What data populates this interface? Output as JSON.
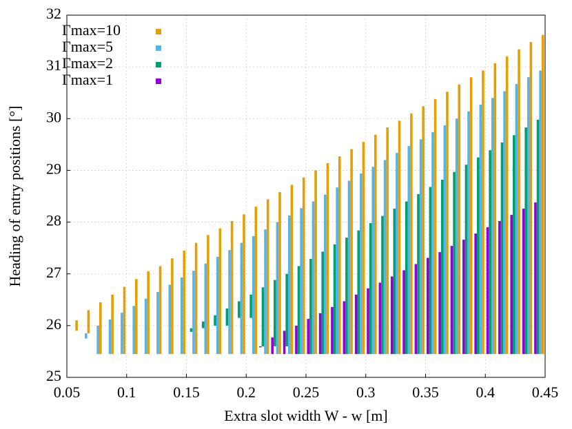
{
  "chart_data": {
    "type": "range-bar",
    "xlabel": "Extra slot width W - w [m]",
    "ylabel": "Heading of entry positions [°]",
    "xlim": [
      0.05,
      0.45
    ],
    "xticks": [
      0.05,
      0.1,
      0.15,
      0.2,
      0.25,
      0.3,
      0.35,
      0.4,
      0.45
    ],
    "ylim": [
      25,
      32
    ],
    "yticks": [
      25,
      26,
      27,
      28,
      29,
      30,
      31,
      32
    ],
    "grid": true,
    "legend": "top-left",
    "x": [
      0.055,
      0.065,
      0.075,
      0.085,
      0.095,
      0.105,
      0.115,
      0.125,
      0.135,
      0.145,
      0.155,
      0.165,
      0.175,
      0.185,
      0.195,
      0.205,
      0.215,
      0.225,
      0.235,
      0.245,
      0.255,
      0.265,
      0.275,
      0.285,
      0.295,
      0.305,
      0.315,
      0.325,
      0.335,
      0.345,
      0.355,
      0.365,
      0.375,
      0.385,
      0.395,
      0.405,
      0.415,
      0.425,
      0.435,
      0.445
    ],
    "series": [
      {
        "name": "Γmax=10",
        "color": "#e69f00",
        "low": [
          25.9,
          25.85,
          25.45,
          25.45,
          25.45,
          25.45,
          25.45,
          25.45,
          25.45,
          25.45,
          25.45,
          25.45,
          25.45,
          25.45,
          25.45,
          25.45,
          25.45,
          25.45,
          25.45,
          25.45,
          25.45,
          25.45,
          25.45,
          25.45,
          25.45,
          25.45,
          25.45,
          25.45,
          25.45,
          25.45,
          25.45,
          25.45,
          25.45,
          25.45,
          25.45,
          25.45,
          25.45,
          25.45,
          25.45,
          25.45
        ],
        "high": [
          26.1,
          26.3,
          26.45,
          26.6,
          26.75,
          26.9,
          27.05,
          27.15,
          27.3,
          27.45,
          27.6,
          27.75,
          27.88,
          28.02,
          28.15,
          28.3,
          28.44,
          28.58,
          28.72,
          28.86,
          29.0,
          29.14,
          29.27,
          29.41,
          29.55,
          29.69,
          29.83,
          29.96,
          30.1,
          30.24,
          30.38,
          30.52,
          30.66,
          30.8,
          30.93,
          31.07,
          31.2,
          31.34,
          31.48,
          31.62
        ]
      },
      {
        "name": "Γmax=5",
        "color": "#56b4e9",
        "low": [
          null,
          25.75,
          25.45,
          25.45,
          25.45,
          25.45,
          25.45,
          25.45,
          25.45,
          25.45,
          25.45,
          25.45,
          25.45,
          25.45,
          25.45,
          25.45,
          25.45,
          25.45,
          25.45,
          25.45,
          25.45,
          25.45,
          25.45,
          25.45,
          25.45,
          25.45,
          25.45,
          25.45,
          25.45,
          25.45,
          25.45,
          25.45,
          25.45,
          25.45,
          25.45,
          25.45,
          25.45,
          25.45,
          25.45,
          25.45
        ],
        "high": [
          null,
          25.85,
          26.0,
          26.12,
          26.25,
          26.38,
          26.52,
          26.65,
          26.79,
          26.93,
          27.06,
          27.2,
          27.33,
          27.46,
          27.6,
          27.73,
          27.86,
          28.0,
          28.13,
          28.27,
          28.4,
          28.53,
          28.67,
          28.8,
          28.94,
          29.07,
          29.2,
          29.34,
          29.47,
          29.6,
          29.74,
          29.87,
          30.0,
          30.14,
          30.27,
          30.4,
          30.53,
          30.67,
          30.8,
          30.93
        ]
      },
      {
        "name": "Γmax=2",
        "color": "#009e73",
        "low": [
          null,
          null,
          null,
          null,
          null,
          null,
          null,
          null,
          null,
          null,
          25.88,
          25.95,
          26.0,
          26.0,
          26.15,
          26.15,
          25.6,
          25.6,
          25.6,
          25.45,
          25.45,
          25.45,
          25.45,
          25.45,
          25.45,
          25.45,
          25.45,
          25.45,
          25.45,
          25.45,
          25.45,
          25.45,
          25.45,
          25.45,
          25.45,
          25.45,
          25.45,
          25.45,
          25.45,
          25.45
        ],
        "high": [
          null,
          null,
          null,
          null,
          null,
          null,
          null,
          null,
          null,
          null,
          25.95,
          26.08,
          26.2,
          26.33,
          26.47,
          26.6,
          26.74,
          26.88,
          27.0,
          27.15,
          27.29,
          27.43,
          27.57,
          27.7,
          27.84,
          27.98,
          28.12,
          28.26,
          28.4,
          28.54,
          28.68,
          28.82,
          28.97,
          29.11,
          29.25,
          29.39,
          29.54,
          29.68,
          29.83,
          29.98
        ]
      },
      {
        "name": "Γmax=1",
        "color": "#9400d3",
        "low": [
          null,
          null,
          null,
          null,
          null,
          null,
          null,
          null,
          null,
          null,
          null,
          null,
          null,
          null,
          null,
          null,
          25.58,
          25.45,
          25.45,
          25.45,
          25.45,
          25.45,
          25.45,
          25.45,
          25.45,
          25.45,
          25.45,
          25.45,
          25.45,
          25.45,
          25.45,
          25.45,
          25.45,
          25.45,
          25.45,
          25.45,
          25.45,
          25.45,
          25.45,
          25.45
        ],
        "high": [
          null,
          null,
          null,
          null,
          null,
          null,
          null,
          null,
          null,
          null,
          null,
          null,
          null,
          null,
          null,
          null,
          25.6,
          25.77,
          25.9,
          26.0,
          26.13,
          26.24,
          26.36,
          26.47,
          26.6,
          26.72,
          26.83,
          26.95,
          27.07,
          27.19,
          27.31,
          27.42,
          27.54,
          27.66,
          27.78,
          27.9,
          28.02,
          28.14,
          28.26,
          28.38
        ]
      }
    ]
  }
}
